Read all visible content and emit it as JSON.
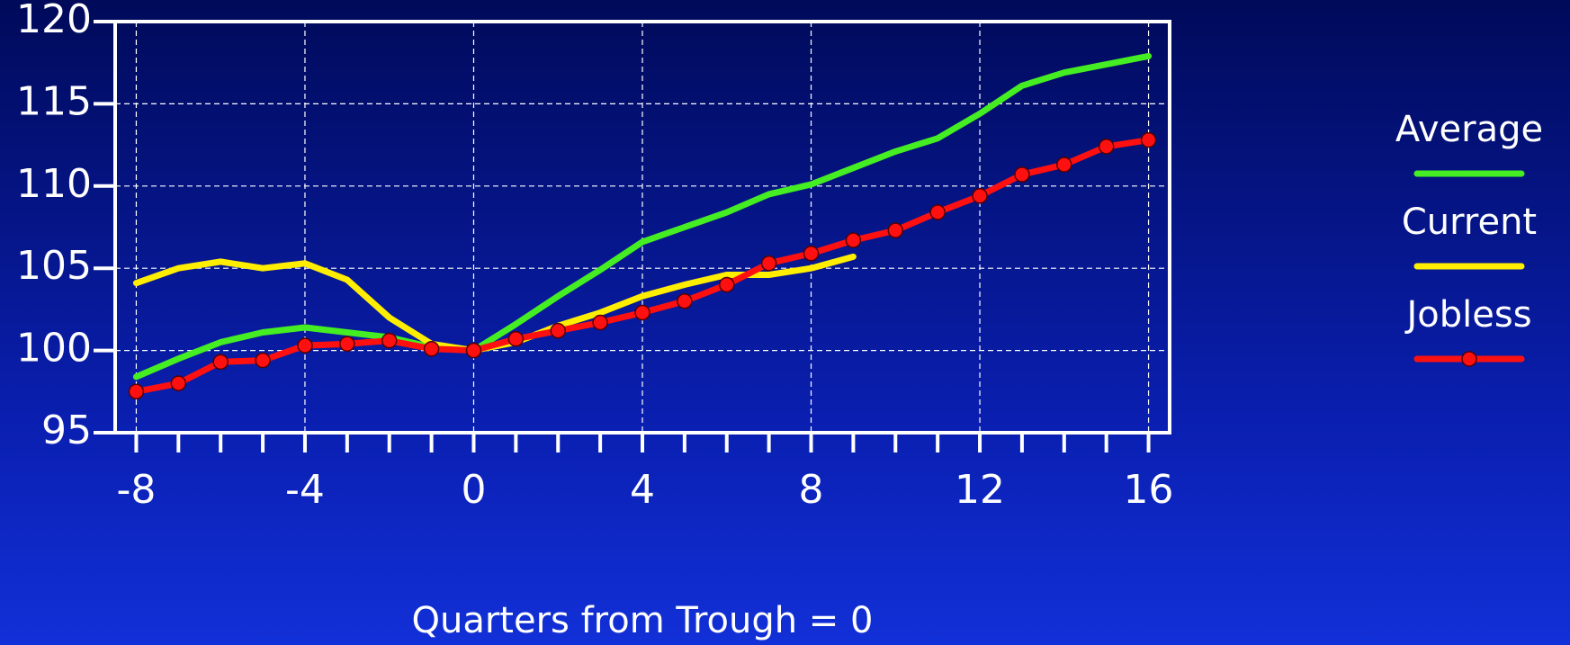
{
  "chart_data": {
    "type": "line",
    "x_label": "Quarters from Trough = 0",
    "xlim": [
      -8.5,
      16.5
    ],
    "ylim": [
      95,
      120
    ],
    "xticks": [
      -8,
      -4,
      0,
      4,
      8,
      12,
      16
    ],
    "xminorticks": [
      -8,
      -7,
      -6,
      -5,
      -4,
      -3,
      -2,
      -1,
      0,
      1,
      2,
      3,
      4,
      5,
      6,
      7,
      8,
      9,
      10,
      11,
      12,
      13,
      14,
      15,
      16
    ],
    "yticks": [
      95,
      100,
      105,
      110,
      115,
      120
    ],
    "grid": true,
    "legend": "right",
    "series": [
      {
        "name": "Average",
        "color": "#44ee22",
        "x": [
          -8,
          -7,
          -6,
          -5,
          -4,
          -3,
          -2,
          -1,
          0,
          1,
          2,
          3,
          4,
          5,
          6,
          7,
          8,
          9,
          10,
          11,
          12,
          13,
          14,
          15,
          16
        ],
        "values": [
          98.4,
          99.5,
          100.5,
          101.1,
          101.4,
          101.1,
          100.8,
          100.2,
          100.0,
          101.6,
          103.3,
          104.9,
          106.6,
          107.5,
          108.4,
          109.5,
          110.1,
          111.1,
          112.1,
          112.9,
          114.4,
          116.1,
          116.9,
          117.4,
          117.9
        ]
      },
      {
        "name": "Current",
        "color": "#ffee00",
        "x": [
          -8,
          -7,
          -6,
          -5,
          -4,
          -3,
          -2,
          -1,
          0,
          1,
          2,
          3,
          4,
          5,
          6,
          7,
          8,
          9
        ],
        "values": [
          104.1,
          105.0,
          105.4,
          105.0,
          105.3,
          104.3,
          102.0,
          100.4,
          100.0,
          100.5,
          101.5,
          102.3,
          103.3,
          104.0,
          104.6,
          104.6,
          105.0,
          105.7
        ]
      },
      {
        "name": "Jobless",
        "color": "#ff1010",
        "marker": "circle",
        "x": [
          -8,
          -7,
          -6,
          -5,
          -4,
          -3,
          -2,
          -1,
          0,
          1,
          2,
          3,
          4,
          5,
          6,
          7,
          8,
          9,
          10,
          11,
          12,
          13,
          14,
          15,
          16
        ],
        "values": [
          97.5,
          98.0,
          99.3,
          99.4,
          100.3,
          100.4,
          100.6,
          100.1,
          100.0,
          100.7,
          101.2,
          101.7,
          102.3,
          103.0,
          104.0,
          105.3,
          105.9,
          106.7,
          107.3,
          108.4,
          109.4,
          110.7,
          111.3,
          112.4,
          112.8
        ]
      }
    ]
  }
}
